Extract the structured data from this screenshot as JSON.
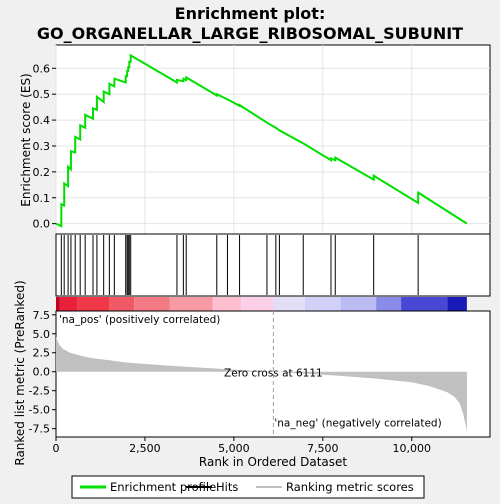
{
  "chart_data": {
    "type": "line",
    "title_line1": "Enrichment plot:",
    "title_line2": "GO_ORGANELLAR_LARGE_RIBOSOMAL_SUBUNIT",
    "xlabel": "Rank in Ordered Dataset",
    "ylabel_top": "Enrichment score (ES)",
    "ylabel_bottom": "Ranked list metric (PreRanked)",
    "xlim": [
      0,
      12200
    ],
    "es_ylim": [
      -0.04,
      0.69
    ],
    "metric_ylim": [
      -8.6,
      8.0
    ],
    "x_ticks": [
      0,
      2500,
      5000,
      7500,
      10000
    ],
    "x_tick_labels": [
      "0",
      "2,500",
      "5,000",
      "7,500",
      "10,000"
    ],
    "es_ticks": [
      0.0,
      0.1,
      0.2,
      0.3,
      0.4,
      0.5,
      0.6
    ],
    "es_tick_labels": [
      "0.0",
      "0.1",
      "0.2",
      "0.3",
      "0.4",
      "0.5",
      "0.6"
    ],
    "metric_ticks": [
      7.5,
      5.0,
      2.5,
      0.0,
      -2.5,
      -5.0,
      -7.5
    ],
    "metric_tick_labels": [
      "7.5",
      "5.0",
      "2.5",
      "0.0",
      "-2.5",
      "-5.0",
      "-7.5"
    ],
    "hits": [
      150,
      230,
      340,
      420,
      540,
      680,
      820,
      1040,
      1150,
      1340,
      1500,
      1640,
      1960,
      2000,
      2030,
      2060,
      2100,
      3400,
      3580,
      3660,
      4520,
      4820,
      5160,
      5930,
      6180,
      6280,
      6950,
      7730,
      7850,
      8930,
      10180
    ],
    "es_curve": {
      "x": [
        0,
        150,
        151,
        230,
        231,
        340,
        341,
        420,
        421,
        540,
        541,
        680,
        681,
        820,
        821,
        1040,
        1041,
        1150,
        1151,
        1340,
        1341,
        1500,
        1501,
        1640,
        1641,
        1960,
        1961,
        2000,
        2001,
        2030,
        2031,
        2060,
        2061,
        2100,
        2101,
        3400,
        3401,
        3580,
        3581,
        3660,
        3661,
        4520,
        4521,
        4820,
        4821,
        5160,
        5161,
        5930,
        5931,
        6180,
        6181,
        6280,
        6281,
        6950,
        6951,
        7730,
        7731,
        7850,
        7851,
        8930,
        8931,
        10180,
        10181,
        11550
      ],
      "y": [
        0.0,
        -0.01,
        0.075,
        0.07,
        0.155,
        0.145,
        0.22,
        0.21,
        0.28,
        0.275,
        0.335,
        0.325,
        0.38,
        0.37,
        0.42,
        0.405,
        0.445,
        0.44,
        0.49,
        0.47,
        0.51,
        0.5,
        0.54,
        0.53,
        0.56,
        0.545,
        0.57,
        0.57,
        0.59,
        0.59,
        0.605,
        0.605,
        0.625,
        0.625,
        0.65,
        0.545,
        0.555,
        0.55,
        0.56,
        0.555,
        0.565,
        0.495,
        0.5,
        0.48,
        0.48,
        0.455,
        0.458,
        0.39,
        0.39,
        0.37,
        0.37,
        0.36,
        0.36,
        0.31,
        0.31,
        0.245,
        0.252,
        0.245,
        0.255,
        0.17,
        0.185,
        0.08,
        0.12,
        0.0
      ]
    },
    "metric_curve": {
      "x": [
        0,
        50,
        100,
        200,
        400,
        700,
        1000,
        1500,
        2000,
        3000,
        4000,
        5000,
        6111,
        7000,
        8000,
        9000,
        10000,
        10500,
        11000,
        11200,
        11350,
        11450,
        11550
      ],
      "y": [
        4.6,
        4.0,
        3.5,
        3.0,
        2.5,
        2.1,
        1.8,
        1.5,
        1.2,
        0.85,
        0.55,
        0.28,
        0.0,
        -0.25,
        -0.55,
        -0.9,
        -1.4,
        -1.9,
        -2.7,
        -3.3,
        -4.2,
        -5.6,
        -7.8
      ]
    },
    "zero_cross_rank": 6111,
    "zero_cross_label": "Zero cross at 6111",
    "pos_label": "'na_pos' (positively correlated)",
    "neg_label": "'na_neg' (negatively correlated)",
    "heatmap_bands": [
      {
        "x0": 0,
        "x1": 100,
        "color": "#c00020"
      },
      {
        "x0": 100,
        "x1": 600,
        "color": "#e8203c"
      },
      {
        "x0": 600,
        "x1": 1500,
        "color": "#f03848"
      },
      {
        "x0": 1500,
        "x1": 2200,
        "color": "#f05a66"
      },
      {
        "x0": 2200,
        "x1": 3200,
        "color": "#f47a84"
      },
      {
        "x0": 3200,
        "x1": 4400,
        "color": "#f89aa4"
      },
      {
        "x0": 4400,
        "x1": 5200,
        "color": "#fcc0d0"
      },
      {
        "x0": 5200,
        "x1": 6111,
        "color": "#fcd0e8"
      },
      {
        "x0": 6111,
        "x1": 7000,
        "color": "#e4ddf6"
      },
      {
        "x0": 7000,
        "x1": 8000,
        "color": "#d0d0f8"
      },
      {
        "x0": 8000,
        "x1": 9000,
        "color": "#bcbcf4"
      },
      {
        "x0": 9000,
        "x1": 9700,
        "color": "#8a8ae8"
      },
      {
        "x0": 9700,
        "x1": 11000,
        "color": "#4848d4"
      },
      {
        "x0": 11000,
        "x1": 11550,
        "color": "#1a1ab8"
      }
    ],
    "legend": [
      {
        "label": "Enrichment profile",
        "kind": "line",
        "color": "#00e000"
      },
      {
        "label": "Hits",
        "kind": "line",
        "color": "#000000"
      },
      {
        "label": "Ranking metric scores",
        "kind": "line",
        "color": "#c0c0c0"
      }
    ],
    "colors": {
      "es_line": "#00e000",
      "metric_fill": "#c0c0c0",
      "pos_text": "#cc0000",
      "neg_text": "#0000cc",
      "zero_line": "#a0a0a0"
    }
  }
}
